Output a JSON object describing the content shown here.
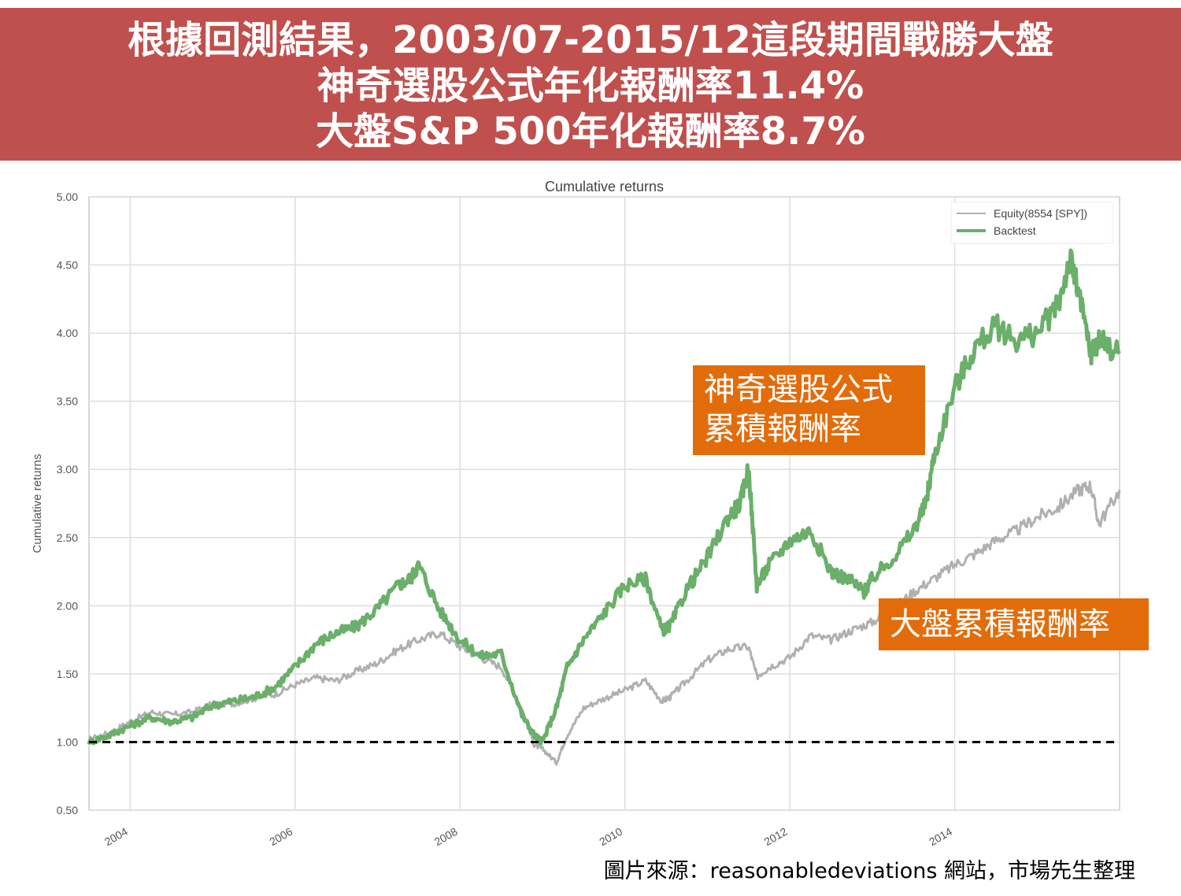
{
  "banner": {
    "line1": "根據回測結果，2003/07-2015/12這段期間戰勝大盤",
    "line2": "神奇選股公式年化報酬率11.4%",
    "line3": "大盤S&P 500年化報酬率8.7%",
    "background_color": "#c0504d"
  },
  "callouts": {
    "backtest": [
      "神奇選股公式",
      "累積報酬率"
    ],
    "market": "大盤累積報酬率",
    "color": "#e36c0a"
  },
  "source": "圖片來源：reasonabledeviations 網站，市場先生整理",
  "chart_data": {
    "type": "line",
    "title": "Cumulative returns",
    "ylabel": "Cumulative returns",
    "xlabel": "",
    "ylim": [
      0.5,
      5.0
    ],
    "xlim": [
      2003.5,
      2016.0
    ],
    "yticks": [
      "0.50",
      "1.00",
      "1.50",
      "2.00",
      "2.50",
      "3.00",
      "3.50",
      "4.00",
      "4.50",
      "5.00"
    ],
    "xticks": [
      "2004",
      "2006",
      "2008",
      "2010",
      "2012",
      "2014"
    ],
    "grid": true,
    "legend_position": "top-right",
    "reference_line": {
      "y": 1.0,
      "style": "dashed",
      "color": "#000000"
    },
    "series": [
      {
        "name": "Equity(8554 [SPY])",
        "color": "#b0b0b0",
        "x": [
          2003.5,
          2003.75,
          2004.0,
          2004.25,
          2004.5,
          2004.75,
          2005.0,
          2005.25,
          2005.5,
          2005.75,
          2006.0,
          2006.25,
          2006.5,
          2006.75,
          2007.0,
          2007.25,
          2007.5,
          2007.75,
          2008.0,
          2008.25,
          2008.5,
          2008.75,
          2008.9,
          2009.0,
          2009.17,
          2009.3,
          2009.5,
          2009.75,
          2010.0,
          2010.25,
          2010.45,
          2010.55,
          2010.75,
          2011.0,
          2011.25,
          2011.5,
          2011.6,
          2011.75,
          2012.0,
          2012.25,
          2012.5,
          2012.75,
          2013.0,
          2013.25,
          2013.5,
          2013.75,
          2014.0,
          2014.25,
          2014.5,
          2014.75,
          2015.0,
          2015.25,
          2015.5,
          2015.65,
          2015.75,
          2016.0
        ],
        "y": [
          1.02,
          1.07,
          1.15,
          1.22,
          1.2,
          1.22,
          1.28,
          1.28,
          1.32,
          1.35,
          1.42,
          1.47,
          1.45,
          1.52,
          1.58,
          1.68,
          1.75,
          1.8,
          1.7,
          1.62,
          1.55,
          1.25,
          0.98,
          0.95,
          0.85,
          1.05,
          1.25,
          1.32,
          1.38,
          1.45,
          1.3,
          1.33,
          1.45,
          1.6,
          1.68,
          1.7,
          1.48,
          1.55,
          1.62,
          1.78,
          1.75,
          1.82,
          1.88,
          1.98,
          2.1,
          2.2,
          2.3,
          2.38,
          2.48,
          2.55,
          2.65,
          2.72,
          2.85,
          2.88,
          2.6,
          2.85
        ]
      },
      {
        "name": "Backtest",
        "color": "#6aaf6a",
        "x": [
          2003.5,
          2003.75,
          2004.0,
          2004.25,
          2004.5,
          2004.75,
          2005.0,
          2005.25,
          2005.5,
          2005.75,
          2006.0,
          2006.25,
          2006.5,
          2006.75,
          2007.0,
          2007.25,
          2007.4,
          2007.5,
          2007.75,
          2008.0,
          2008.25,
          2008.5,
          2008.75,
          2008.9,
          2009.0,
          2009.17,
          2009.3,
          2009.5,
          2009.75,
          2010.0,
          2010.25,
          2010.45,
          2010.55,
          2010.75,
          2011.0,
          2011.25,
          2011.4,
          2011.5,
          2011.6,
          2011.75,
          2012.0,
          2012.25,
          2012.5,
          2012.75,
          2012.9,
          2013.0,
          2013.25,
          2013.5,
          2013.65,
          2013.75,
          2014.0,
          2014.25,
          2014.5,
          2014.75,
          2015.0,
          2015.25,
          2015.4,
          2015.5,
          2015.65,
          2015.75,
          2016.0
        ],
        "y": [
          1.0,
          1.05,
          1.12,
          1.18,
          1.15,
          1.18,
          1.27,
          1.3,
          1.33,
          1.4,
          1.55,
          1.72,
          1.8,
          1.85,
          1.98,
          2.15,
          2.2,
          2.3,
          1.97,
          1.75,
          1.63,
          1.65,
          1.2,
          1.05,
          1.0,
          1.25,
          1.55,
          1.75,
          1.95,
          2.15,
          2.2,
          1.82,
          1.85,
          2.12,
          2.35,
          2.65,
          2.75,
          3.02,
          2.15,
          2.3,
          2.48,
          2.55,
          2.25,
          2.18,
          2.1,
          2.2,
          2.35,
          2.55,
          2.75,
          3.1,
          3.6,
          3.9,
          4.05,
          3.95,
          4.0,
          4.2,
          4.55,
          4.3,
          3.85,
          3.95,
          3.85
        ]
      }
    ]
  }
}
